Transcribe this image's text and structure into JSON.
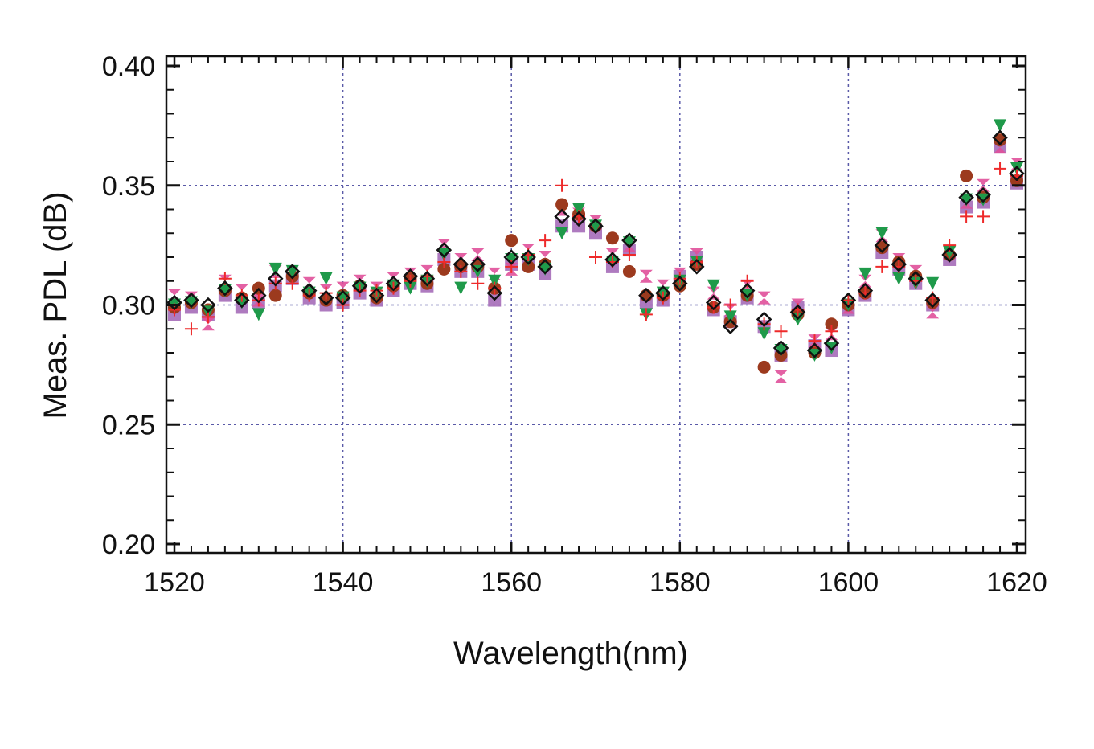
{
  "chart_data": {
    "type": "scatter",
    "title": "",
    "xlabel": "Wavelength(nm)",
    "ylabel": "Meas. PDL (dB)",
    "xlim": [
      1520,
      1620
    ],
    "ylim": [
      0.2,
      0.4
    ],
    "xticks": [
      "1520",
      "1540",
      "1560",
      "1580",
      "1600",
      "1620"
    ],
    "yticks": [
      "0.20",
      "0.25",
      "0.30",
      "0.35",
      "0.40"
    ],
    "grid": true,
    "grid_color": "#5a5aa8",
    "x": [
      1520,
      1522,
      1524,
      1526,
      1528,
      1530,
      1532,
      1534,
      1536,
      1538,
      1540,
      1542,
      1544,
      1546,
      1548,
      1550,
      1552,
      1554,
      1556,
      1558,
      1560,
      1562,
      1564,
      1566,
      1568,
      1570,
      1572,
      1574,
      1576,
      1578,
      1580,
      1582,
      1584,
      1586,
      1588,
      1590,
      1592,
      1594,
      1596,
      1598,
      1600,
      1602,
      1604,
      1606,
      1608,
      1610,
      1612,
      1614,
      1616,
      1618,
      1620
    ],
    "series": [
      {
        "marker": "square",
        "color": "#a56cb8",
        "values": [
          0.296,
          0.299,
          0.296,
          0.304,
          0.299,
          0.301,
          0.308,
          0.311,
          0.303,
          0.3,
          0.301,
          0.305,
          0.302,
          0.306,
          0.309,
          0.308,
          0.319,
          0.314,
          0.314,
          0.302,
          0.317,
          0.317,
          0.313,
          0.333,
          0.333,
          0.33,
          0.316,
          0.323,
          0.301,
          0.302,
          0.312,
          0.32,
          0.298,
          0.293,
          0.303,
          0.291,
          0.279,
          0.299,
          0.283,
          0.281,
          0.298,
          0.304,
          0.322,
          0.315,
          0.309,
          0.3,
          0.319,
          0.341,
          0.343,
          0.366,
          0.351
        ]
      },
      {
        "marker": "hourglass",
        "color": "#e0509a",
        "values": [
          0.304,
          0.303,
          0.292,
          0.31,
          0.306,
          0.302,
          0.314,
          0.313,
          0.309,
          0.306,
          0.307,
          0.31,
          0.307,
          0.311,
          0.313,
          0.314,
          0.325,
          0.319,
          0.321,
          0.313,
          0.315,
          0.323,
          0.32,
          0.34,
          0.338,
          0.335,
          0.321,
          0.325,
          0.312,
          0.308,
          0.313,
          0.321,
          0.305,
          0.298,
          0.308,
          0.303,
          0.27,
          0.3,
          0.285,
          0.288,
          0.299,
          0.31,
          0.329,
          0.319,
          0.314,
          0.297,
          0.322,
          0.343,
          0.35,
          0.366,
          0.359
        ]
      },
      {
        "marker": "circle",
        "color": "#9c3a1e",
        "values": [
          0.299,
          0.301,
          0.298,
          0.306,
          0.303,
          0.307,
          0.304,
          0.312,
          0.305,
          0.302,
          0.304,
          0.308,
          0.303,
          0.308,
          0.311,
          0.309,
          0.315,
          0.316,
          0.316,
          0.307,
          0.327,
          0.316,
          0.317,
          0.342,
          0.338,
          0.333,
          0.328,
          0.314,
          0.304,
          0.304,
          0.308,
          0.317,
          0.299,
          0.293,
          0.304,
          0.274,
          0.279,
          0.296,
          0.28,
          0.292,
          0.3,
          0.305,
          0.324,
          0.318,
          0.312,
          0.301,
          0.321,
          0.354,
          0.345,
          0.369,
          0.352
        ]
      },
      {
        "marker": "triangle-down",
        "color": "#1f9a4a",
        "values": [
          0.3,
          0.301,
          0.297,
          0.306,
          0.301,
          0.296,
          0.315,
          0.314,
          0.305,
          0.311,
          0.303,
          0.307,
          0.305,
          0.308,
          0.307,
          0.31,
          0.321,
          0.307,
          0.314,
          0.31,
          0.319,
          0.319,
          0.315,
          0.33,
          0.34,
          0.333,
          0.318,
          0.326,
          0.296,
          0.305,
          0.31,
          0.318,
          0.308,
          0.295,
          0.304,
          0.288,
          0.281,
          0.294,
          0.279,
          0.282,
          0.3,
          0.313,
          0.33,
          0.311,
          0.309,
          0.309,
          0.322,
          0.344,
          0.344,
          0.375,
          0.357
        ]
      },
      {
        "marker": "plus",
        "color": "#ee2a2a",
        "values": [
          0.298,
          0.29,
          0.295,
          0.311,
          0.304,
          0.302,
          0.309,
          0.309,
          0.304,
          0.305,
          0.3,
          0.306,
          0.306,
          0.307,
          0.31,
          0.312,
          0.318,
          0.314,
          0.309,
          0.307,
          0.316,
          0.321,
          0.327,
          0.35,
          0.337,
          0.32,
          0.318,
          0.321,
          0.296,
          0.303,
          0.311,
          0.318,
          0.299,
          0.3,
          0.31,
          0.292,
          0.289,
          0.298,
          0.285,
          0.289,
          0.302,
          0.305,
          0.316,
          0.316,
          0.31,
          0.303,
          0.325,
          0.337,
          0.337,
          0.357,
          0.354
        ]
      },
      {
        "marker": "diamond",
        "color": "#111111",
        "values": [
          0.301,
          0.302,
          0.3,
          0.307,
          0.302,
          0.304,
          0.311,
          0.314,
          0.306,
          0.303,
          0.303,
          0.308,
          0.304,
          0.309,
          0.312,
          0.311,
          0.323,
          0.317,
          0.317,
          0.305,
          0.32,
          0.32,
          0.316,
          0.337,
          0.336,
          0.333,
          0.319,
          0.327,
          0.304,
          0.305,
          0.309,
          0.316,
          0.301,
          0.291,
          0.306,
          0.294,
          0.282,
          0.297,
          0.281,
          0.284,
          0.302,
          0.306,
          0.325,
          0.317,
          0.311,
          0.302,
          0.321,
          0.345,
          0.346,
          0.37,
          0.355
        ]
      }
    ]
  }
}
